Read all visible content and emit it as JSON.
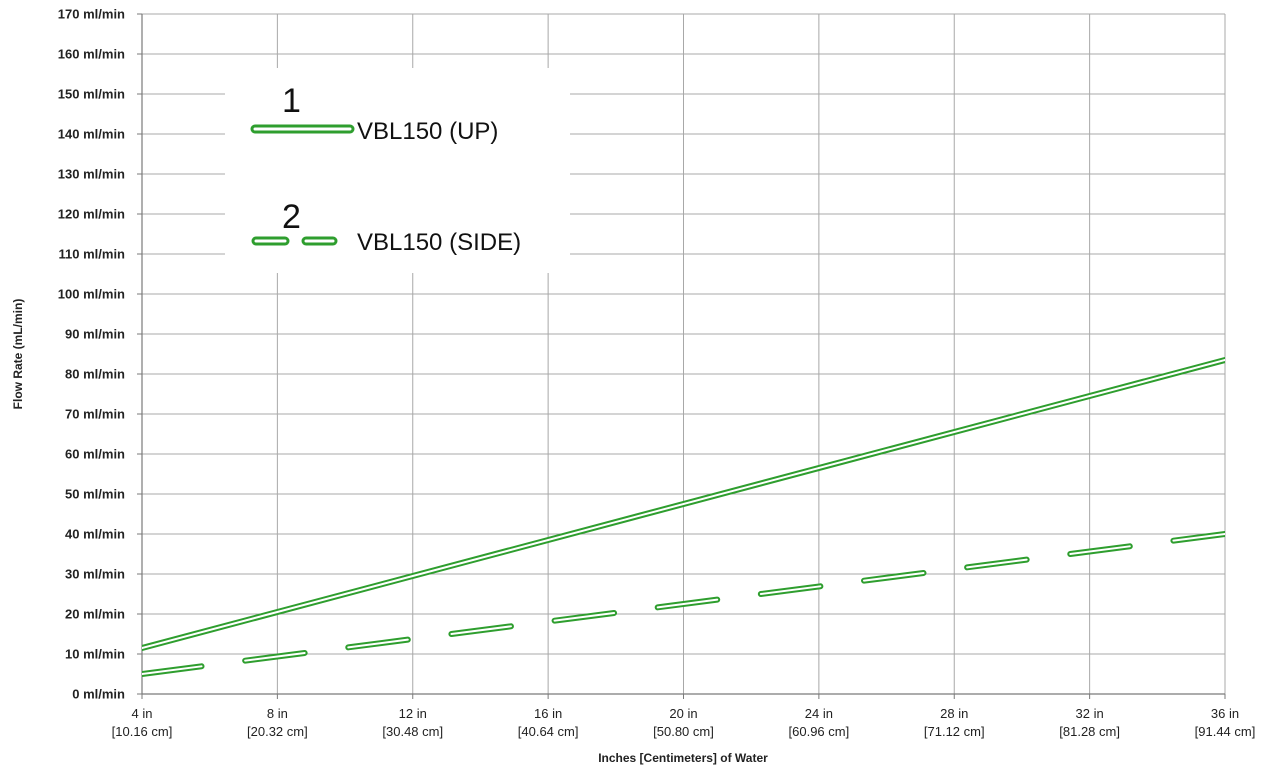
{
  "chart_data": {
    "type": "line",
    "xlabel": "Inches [Centimeters] of Water",
    "ylabel": "Flow Rate (mL/min)",
    "x_tick_labels": [
      {
        "value": 4,
        "line1": "4 in",
        "line2": "[10.16 cm]"
      },
      {
        "value": 8,
        "line1": "8 in",
        "line2": "[20.32 cm]"
      },
      {
        "value": 12,
        "line1": "12 in",
        "line2": "[30.48 cm]"
      },
      {
        "value": 16,
        "line1": "16 in",
        "line2": "[40.64 cm]"
      },
      {
        "value": 20,
        "line1": "20 in",
        "line2": "[50.80 cm]"
      },
      {
        "value": 24,
        "line1": "24 in",
        "line2": "[60.96 cm]"
      },
      {
        "value": 28,
        "line1": "28 in",
        "line2": "[71.12 cm]"
      },
      {
        "value": 32,
        "line1": "32 in",
        "line2": "[81.28 cm]"
      },
      {
        "value": 36,
        "line1": "36 in",
        "line2": "[91.44 cm]"
      }
    ],
    "y_tick_labels": [
      {
        "value": 0,
        "label": "0 ml/min"
      },
      {
        "value": 10,
        "label": "10 ml/min"
      },
      {
        "value": 20,
        "label": "20 ml/min"
      },
      {
        "value": 30,
        "label": "30 ml/min"
      },
      {
        "value": 40,
        "label": "40 ml/min"
      },
      {
        "value": 50,
        "label": "50 ml/min"
      },
      {
        "value": 60,
        "label": "60 ml/min"
      },
      {
        "value": 70,
        "label": "70 ml/min"
      },
      {
        "value": 80,
        "label": "80 ml/min"
      },
      {
        "value": 90,
        "label": "90 ml/min"
      },
      {
        "value": 100,
        "label": "100 ml/min"
      },
      {
        "value": 110,
        "label": "110 ml/min"
      },
      {
        "value": 120,
        "label": "120 ml/min"
      },
      {
        "value": 130,
        "label": "130 ml/min"
      },
      {
        "value": 140,
        "label": "140 ml/min"
      },
      {
        "value": 150,
        "label": "150 ml/min"
      },
      {
        "value": 160,
        "label": "160 ml/min"
      },
      {
        "value": 170,
        "label": "170 ml/min"
      }
    ],
    "xlim": [
      4,
      36
    ],
    "ylim": [
      0,
      170
    ],
    "grid": true,
    "legend_position": "top-left",
    "series": [
      {
        "name": "VBL150 (UP)",
        "number": "1",
        "style": "solid",
        "color": "#2e9e2e",
        "x": [
          4,
          36
        ],
        "values": [
          11.5,
          83.5
        ]
      },
      {
        "name": "VBL150 (SIDE)",
        "number": "2",
        "style": "dashed",
        "color": "#2e9e2e",
        "x": [
          4,
          36
        ],
        "values": [
          5,
          40
        ]
      }
    ]
  }
}
